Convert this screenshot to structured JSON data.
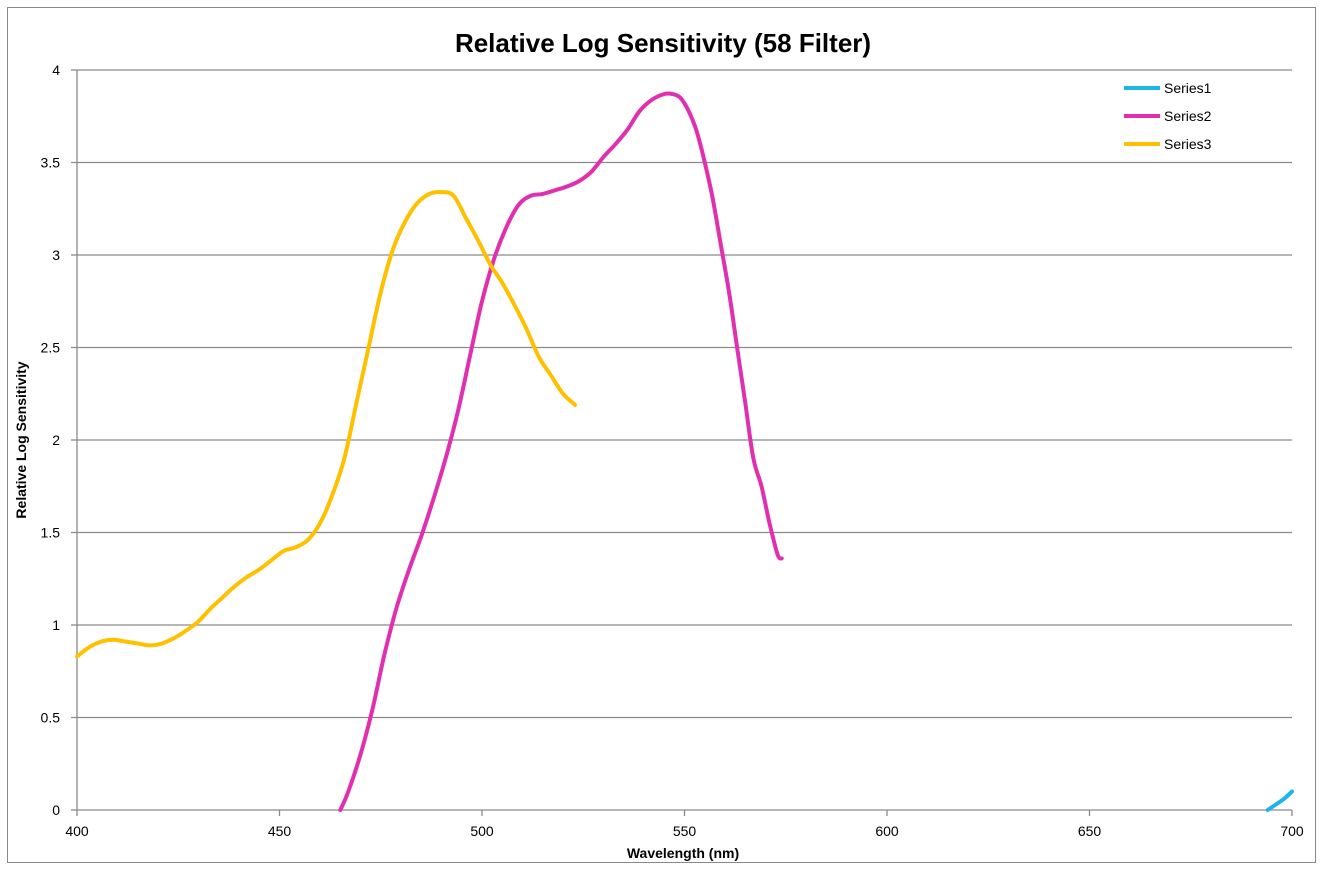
{
  "chart_data": {
    "type": "line",
    "title": "Relative Log Sensitivity (58 Filter)",
    "xlabel": "Wavelength (nm)",
    "ylabel": "Relative Log Sensitivity",
    "xlim": [
      400,
      700
    ],
    "ylim": [
      0,
      4
    ],
    "x_ticks": [
      400,
      450,
      500,
      550,
      600,
      650,
      700
    ],
    "x_tick_labels": [
      "400",
      "450",
      "500",
      "550",
      "600",
      "650",
      "700"
    ],
    "y_ticks": [
      0,
      0.5,
      1,
      1.5,
      2,
      2.5,
      3,
      3.5,
      4
    ],
    "y_tick_labels": [
      "0",
      "0.5",
      "1",
      "1.5",
      "2",
      "2.5",
      "3",
      "3.5",
      "4"
    ],
    "grid": "horizontal",
    "legend_position": "top-right",
    "series": [
      {
        "name": "Series1",
        "color": "#1EB4E8",
        "x": [
          694,
          696,
          698,
          700
        ],
        "y": [
          0.0,
          0.03,
          0.06,
          0.1
        ]
      },
      {
        "name": "Series2",
        "color": "#E030B0",
        "x": [
          465,
          467,
          470,
          473,
          476,
          479,
          482,
          485,
          488,
          491,
          494,
          497,
          500,
          503,
          506,
          509,
          512,
          515,
          518,
          521,
          524,
          527,
          530,
          533,
          536,
          539,
          542,
          545,
          547,
          549,
          551,
          553,
          555,
          557,
          559,
          561,
          563,
          565,
          567,
          569,
          571,
          573,
          574
        ],
        "y": [
          0.0,
          0.1,
          0.3,
          0.55,
          0.85,
          1.1,
          1.3,
          1.48,
          1.68,
          1.9,
          2.15,
          2.45,
          2.75,
          2.98,
          3.15,
          3.27,
          3.32,
          3.33,
          3.35,
          3.37,
          3.4,
          3.45,
          3.53,
          3.6,
          3.68,
          3.78,
          3.84,
          3.87,
          3.87,
          3.85,
          3.78,
          3.67,
          3.5,
          3.3,
          3.05,
          2.8,
          2.5,
          2.2,
          1.9,
          1.75,
          1.55,
          1.38,
          1.36
        ]
      },
      {
        "name": "Series3",
        "color": "#FFC000",
        "x": [
          400,
          403,
          406,
          409,
          412,
          415,
          418,
          421,
          424,
          427,
          430,
          433,
          436,
          439,
          442,
          445,
          448,
          451,
          454,
          457,
          460,
          463,
          466,
          469,
          472,
          475,
          478,
          481,
          484,
          487,
          490,
          493,
          496,
          499,
          502,
          505,
          508,
          511,
          514,
          517,
          520,
          523
        ],
        "y": [
          0.83,
          0.88,
          0.91,
          0.92,
          0.91,
          0.9,
          0.89,
          0.9,
          0.93,
          0.97,
          1.02,
          1.09,
          1.15,
          1.21,
          1.26,
          1.3,
          1.35,
          1.4,
          1.42,
          1.46,
          1.55,
          1.7,
          1.9,
          2.2,
          2.5,
          2.8,
          3.03,
          3.18,
          3.28,
          3.33,
          3.34,
          3.32,
          3.2,
          3.08,
          2.95,
          2.85,
          2.73,
          2.6,
          2.45,
          2.35,
          2.25,
          2.19
        ]
      }
    ]
  }
}
